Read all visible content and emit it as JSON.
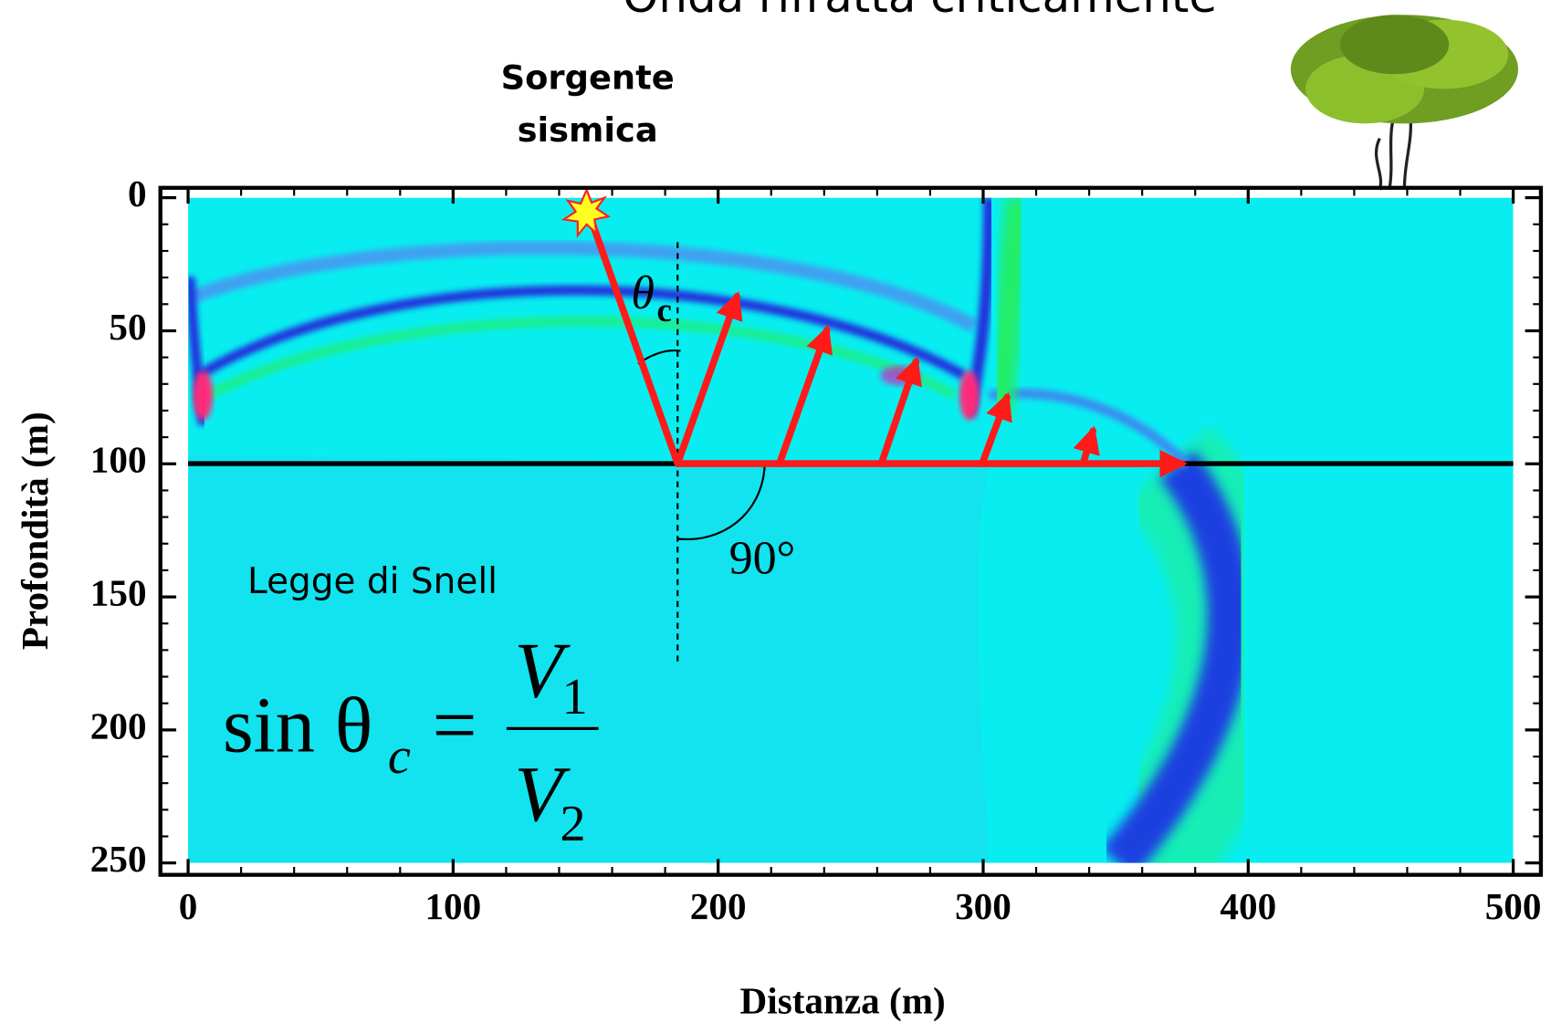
{
  "chart_data": {
    "type": "wavefield",
    "title": "Onda rifratta criticamente",
    "source_label": [
      "Sorgente",
      "sismica"
    ],
    "x_label": "Distanza (m)",
    "y_label": "Profondità (m)",
    "xlim": [
      0,
      500
    ],
    "xticks": [
      0,
      100,
      200,
      300,
      400,
      500
    ],
    "ylim": [
      0,
      250
    ],
    "yticks": [
      0,
      50,
      100,
      150,
      200,
      250
    ],
    "y_inverted": true,
    "angle_label": {
      "symbol": "θ",
      "sub": "c"
    },
    "right_angle_label": "90°",
    "law_label": "Legge di Snell",
    "formula": {
      "lhs": "sin θ",
      "lhs_sub": "c",
      "op": "=",
      "num": "V",
      "num_sub": "1",
      "den": "V",
      "den_sub": "2"
    }
  }
}
